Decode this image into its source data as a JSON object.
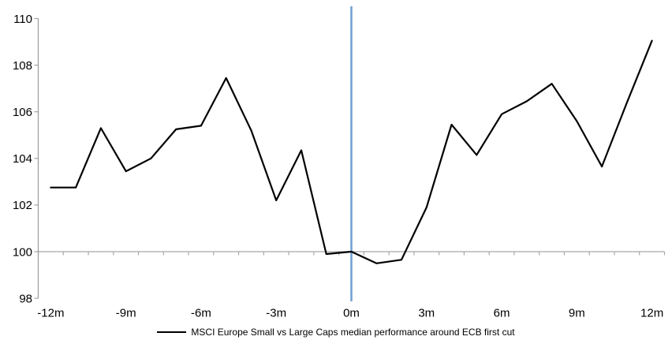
{
  "chart": {
    "legend": {
      "marker": "black-line-sample",
      "label": "MSCI Europe Small vs Large Caps median performance around ECB first cut"
    },
    "colors": {
      "series_line": "#000000",
      "event_line": "#6f9fd0",
      "axis": "#a0a0a0",
      "baseline_grid": "#a8a8a8",
      "text": "#000000",
      "background": "#ffffff"
    }
  },
  "chart_data": {
    "type": "line",
    "title": "",
    "xlabel": "",
    "ylabel": "",
    "x_unit": "months relative to ECB first cut",
    "x": [
      -12,
      -11,
      -10,
      -9,
      -8,
      -7,
      -6,
      -5,
      -4,
      -3,
      -2,
      -1,
      0,
      1,
      2,
      3,
      4,
      5,
      6,
      7,
      8,
      9,
      10,
      11,
      12
    ],
    "series": [
      {
        "name": "MSCI Europe Small vs Large Caps median performance around ECB first cut",
        "values": [
          102.75,
          102.75,
          105.3,
          103.45,
          104.0,
          105.25,
          105.4,
          107.45,
          105.2,
          102.2,
          104.35,
          99.9,
          100.0,
          99.5,
          99.65,
          101.9,
          105.45,
          104.15,
          105.9,
          106.45,
          107.2,
          105.6,
          103.65,
          106.4,
          109.05
        ]
      }
    ],
    "x_tick_months": [
      -12,
      -9,
      -6,
      -3,
      0,
      3,
      6,
      9,
      12
    ],
    "x_tick_labels": [
      "-12m",
      "-9m",
      "-6m",
      "-3m",
      "0m",
      "3m",
      "6m",
      "9m",
      "12m"
    ],
    "y_ticks": [
      98,
      100,
      102,
      104,
      106,
      108,
      110
    ],
    "y_tick_labels": [
      "98",
      "100",
      "102",
      "104",
      "106",
      "108",
      "110"
    ],
    "ylim": [
      98,
      110.5
    ],
    "baseline_value": 100,
    "event_line_x": 0,
    "grid": "single horizontal baseline at 100 with monthly minor ticks between categories",
    "legend_position": "bottom-center"
  }
}
